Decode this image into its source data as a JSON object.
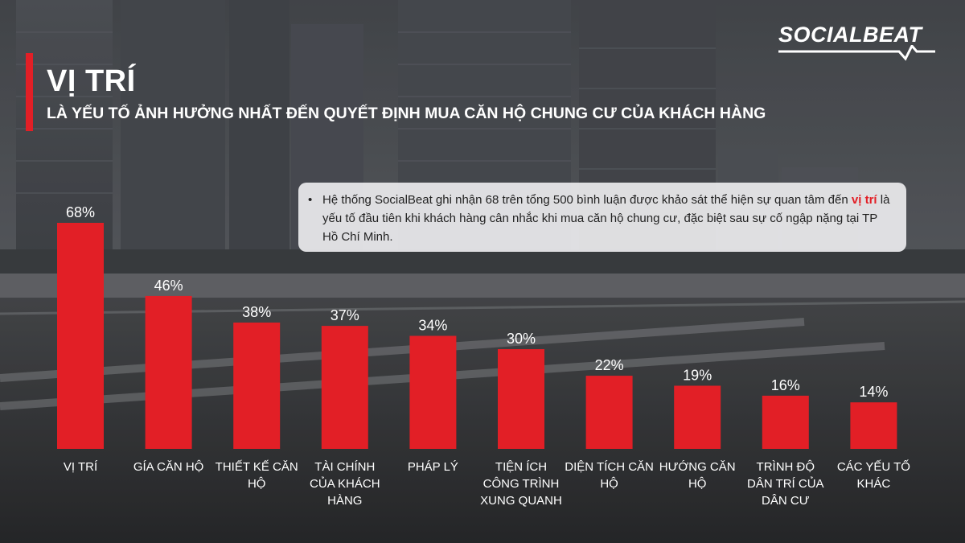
{
  "header": {
    "title": "VỊ TRÍ",
    "subtitle": "LÀ YẾU TỐ ẢNH HƯỞNG NHẤT ĐẾN QUYẾT ĐỊNH MUA CĂN HỘ CHUNG CƯ CỦA KHÁCH HÀNG"
  },
  "logo": {
    "text": "SOCIALBEAT"
  },
  "note": {
    "bullet": "•",
    "before": "Hệ thống SocialBeat ghi nhận 68 trên tổng 500 bình luận được khảo sát thể hiện sự quan tâm đến ",
    "highlight": "vị trí",
    "after": " là yếu tố đầu tiên khi khách hàng cân nhắc khi mua căn hộ chung cư, đặc biệt sau sự cố ngập nặng tại TP Hồ Chí Minh."
  },
  "colors": {
    "accent": "#e21f26",
    "text": "#ffffff"
  },
  "chart_data": {
    "type": "bar",
    "categories": [
      "VỊ TRÍ",
      "GÍA CĂN HỘ",
      "THIẾT KẾ CĂN HỘ",
      "TÀI CHÍNH CỦA KHÁCH HÀNG",
      "PHÁP LÝ",
      "TIỆN ÍCH CÔNG TRÌNH XUNG QUANH",
      "DIỆN TÍCH CĂN HỘ",
      "HƯỚNG CĂN HỘ",
      "TRÌNH ĐỘ DÂN TRÍ CỦA DÂN CƯ",
      "CÁC YẾU TỐ KHÁC"
    ],
    "category_lines": [
      [
        "VỊ TRÍ"
      ],
      [
        "GÍA CĂN HỘ"
      ],
      [
        "THIẾT KẾ CĂN",
        "HỘ"
      ],
      [
        "TÀI CHÍNH",
        "CỦA KHÁCH",
        "HÀNG"
      ],
      [
        "PHÁP LÝ"
      ],
      [
        "TIỆN ÍCH",
        "CÔNG TRÌNH",
        "XUNG QUANH"
      ],
      [
        "DIỆN TÍCH CĂN",
        "HỘ"
      ],
      [
        "HƯỚNG CĂN",
        "HỘ"
      ],
      [
        "TRÌNH ĐỘ",
        "DÂN TRÍ CỦA",
        "DÂN CƯ"
      ],
      [
        "CÁC YẾU TỐ",
        "KHÁC"
      ]
    ],
    "values": [
      68,
      46,
      38,
      37,
      34,
      30,
      22,
      19,
      16,
      14
    ],
    "value_labels": [
      "68%",
      "46%",
      "38%",
      "37%",
      "34%",
      "30%",
      "22%",
      "19%",
      "16%",
      "14%"
    ],
    "unit": "%",
    "ylim": [
      0,
      68
    ],
    "grid": false,
    "bar_color": "#e21f26"
  }
}
